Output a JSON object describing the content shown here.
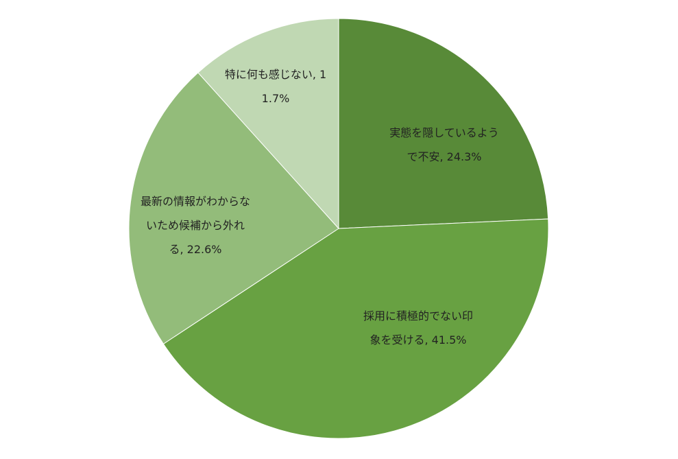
{
  "chart_data": {
    "type": "pie",
    "categories": [
      "実態を隠しているようで不安,",
      "採用に積極的でない印象を受ける,",
      "最新の情報がわからないため候補から外れる,",
      "特に何も感じない,"
    ],
    "values": [
      24.3,
      41.5,
      22.6,
      11.7
    ],
    "value_labels": [
      "24.3%",
      "41.5%",
      "22.6%",
      "11.7%"
    ],
    "colors": [
      "#588a38",
      "#68a142",
      "#93bc7a",
      "#c0d8b3"
    ]
  }
}
